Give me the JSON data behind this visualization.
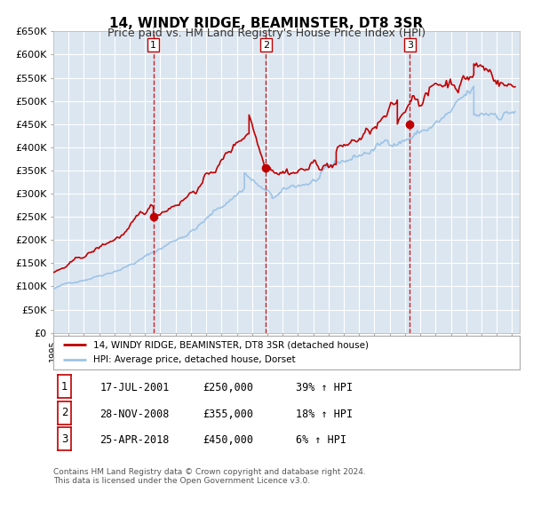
{
  "title": "14, WINDY RIDGE, BEAMINSTER, DT8 3SR",
  "subtitle": "Price paid vs. HM Land Registry's House Price Index (HPI)",
  "ylabel": "",
  "background_color": "#ffffff",
  "plot_bg_color": "#dce6f1",
  "grid_color": "#ffffff",
  "hpi_color": "#9dc3e6",
  "price_color": "#c00000",
  "sale_marker_color": "#c00000",
  "dashed_line_color": "#c00000",
  "ylim": [
    0,
    650000
  ],
  "yticks": [
    0,
    50000,
    100000,
    150000,
    200000,
    250000,
    300000,
    350000,
    400000,
    450000,
    500000,
    550000,
    600000,
    650000
  ],
  "ytick_labels": [
    "£0",
    "£50K",
    "£100K",
    "£150K",
    "£200K",
    "£250K",
    "£300K",
    "£350K",
    "£400K",
    "£450K",
    "£500K",
    "£550K",
    "£600K",
    "£650K"
  ],
  "xmin": 1995.0,
  "xmax": 2025.5,
  "sales": [
    {
      "date_num": 2001.54,
      "price": 250000,
      "label": "1"
    },
    {
      "date_num": 2008.91,
      "price": 355000,
      "label": "2"
    },
    {
      "date_num": 2018.32,
      "price": 450000,
      "label": "3"
    }
  ],
  "legend_price_label": "14, WINDY RIDGE, BEAMINSTER, DT8 3SR (detached house)",
  "legend_hpi_label": "HPI: Average price, detached house, Dorset",
  "table_rows": [
    {
      "num": "1",
      "date": "17-JUL-2001",
      "price": "£250,000",
      "pct": "39% ↑ HPI"
    },
    {
      "num": "2",
      "date": "28-NOV-2008",
      "price": "£355,000",
      "pct": "18% ↑ HPI"
    },
    {
      "num": "3",
      "date": "25-APR-2018",
      "price": "£450,000",
      "pct": "6% ↑ HPI"
    }
  ],
  "footnote1": "Contains HM Land Registry data © Crown copyright and database right 2024.",
  "footnote2": "This data is licensed under the Open Government Licence v3.0."
}
